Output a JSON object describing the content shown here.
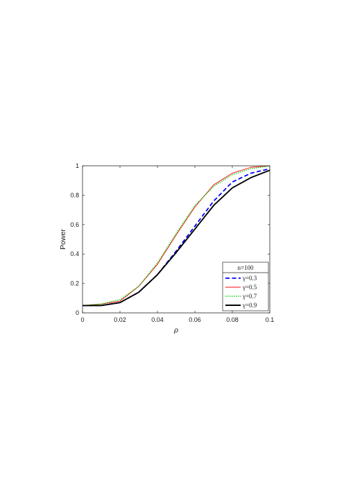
{
  "chart_data": {
    "type": "line",
    "xlabel": "ρ",
    "ylabel": "Power",
    "xlim": [
      0,
      0.1
    ],
    "ylim": [
      0,
      1
    ],
    "xticks": [
      "0",
      "0.02",
      "0.04",
      "0.06",
      "0.08",
      "0.1"
    ],
    "yticks": [
      "0",
      "0.2",
      "0.4",
      "0.6",
      "0.8",
      "1"
    ],
    "grid": false,
    "legend": {
      "title": "n=100",
      "placement": "bottom-right"
    },
    "x": [
      0,
      0.01,
      0.02,
      0.03,
      0.04,
      0.05,
      0.06,
      0.07,
      0.08,
      0.09,
      0.1
    ],
    "series": [
      {
        "name": "γ=0.3",
        "color": "#0000ff",
        "dash": "dashed",
        "values": [
          0.05,
          0.05,
          0.07,
          0.14,
          0.26,
          0.42,
          0.59,
          0.76,
          0.89,
          0.95,
          0.98
        ]
      },
      {
        "name": "γ=0.5",
        "color": "#ff0000",
        "dash": "solid",
        "values": [
          0.05,
          0.06,
          0.08,
          0.18,
          0.33,
          0.53,
          0.72,
          0.87,
          0.95,
          0.99,
          1.0
        ]
      },
      {
        "name": "γ=0.7",
        "color": "#00cc00",
        "dash": "dotted",
        "values": [
          0.05,
          0.06,
          0.09,
          0.18,
          0.34,
          0.54,
          0.73,
          0.86,
          0.94,
          0.98,
          1.0
        ]
      },
      {
        "name": "γ=0.9",
        "color": "#000000",
        "dash": "solid-thick",
        "values": [
          0.05,
          0.05,
          0.07,
          0.14,
          0.26,
          0.41,
          0.57,
          0.73,
          0.85,
          0.92,
          0.97
        ]
      }
    ]
  }
}
